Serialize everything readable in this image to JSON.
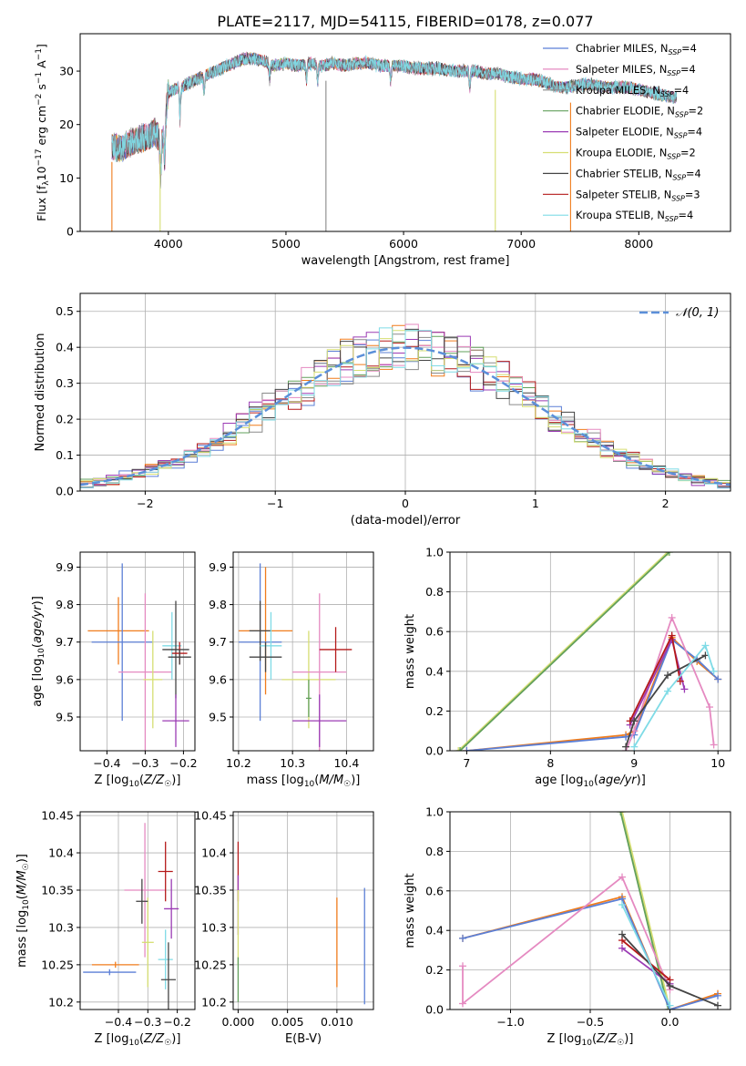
{
  "figure_title": "PLATE=2117, MJD=54115, FIBERID=0178, z=0.077",
  "colors": {
    "chabrier_miles": "#5b7fd6",
    "salpeter_miles": "#e58ac1",
    "kroupa_miles": "#8a8a8a",
    "chabrier_elodie": "#62a05b",
    "salpeter_elodie": "#9b3bb4",
    "kroupa_elodie": "#d6de72",
    "chabrier_stelib": "#444444",
    "salpeter_stelib": "#b51a1a",
    "kroupa_stelib": "#7fdbe6",
    "orange": "#f07c1c",
    "normal_curve": "#5b8fd9",
    "grid": "#b0b0b0"
  },
  "chart_data": [
    {
      "id": "spectrum",
      "type": "line",
      "xlabel": "wavelength [Angstrom, rest frame]",
      "ylabel": "Flux [f_λ10^-17 erg cm^-2 s^-1 A^-1]",
      "xlim": [
        3250,
        8780
      ],
      "ylim": [
        0,
        37
      ],
      "xticks": [
        4000,
        5000,
        6000,
        7000,
        8000
      ],
      "yticks": [
        0,
        10,
        20,
        30
      ],
      "grid": false,
      "legend_position": "top-right",
      "legend": [
        {
          "label": "Chabrier MILES, N",
          "sub": "SSP",
          "tail": "=4",
          "color_key": "chabrier_miles"
        },
        {
          "label": "Salpeter MILES, N",
          "sub": "SSP",
          "tail": "=4",
          "color_key": "salpeter_miles"
        },
        {
          "label": "Kroupa MILES, N",
          "sub": "SSP",
          "tail": "=4",
          "color_key": "kroupa_miles"
        },
        {
          "label": "Chabrier ELODIE, N",
          "sub": "SSP",
          "tail": "=2",
          "color_key": "chabrier_elodie"
        },
        {
          "label": "Salpeter ELODIE, N",
          "sub": "SSP",
          "tail": "=4",
          "color_key": "salpeter_elodie"
        },
        {
          "label": "Kroupa ELODIE, N",
          "sub": "SSP",
          "tail": "=2",
          "color_key": "kroupa_elodie"
        },
        {
          "label": "Chabrier STELIB, N",
          "sub": "SSP",
          "tail": "=4",
          "color_key": "chabrier_stelib"
        },
        {
          "label": "Salpeter STELIB, N",
          "sub": "SSP",
          "tail": "=3",
          "color_key": "salpeter_stelib"
        },
        {
          "label": "Kroupa STELIB, N",
          "sub": "SSP",
          "tail": "=4",
          "color_key": "kroupa_stelib"
        }
      ],
      "continuum_points": {
        "x": [
          3520,
          3600,
          3700,
          3800,
          3880,
          3950,
          4000,
          4100,
          4200,
          4300,
          4400,
          4500,
          4600,
          4700,
          4800,
          4900,
          5000,
          5100,
          5200,
          5300,
          5400,
          5500,
          5600,
          5700,
          5800,
          5900,
          6000,
          6100,
          6200,
          6300,
          6400,
          6500,
          6600,
          6700,
          6800,
          6900,
          7000,
          7100,
          7200,
          7300,
          7400,
          7500,
          7600,
          7700,
          7800,
          7900,
          8000,
          8100,
          8200,
          8320
        ],
        "y": [
          16,
          15.5,
          17,
          17.5,
          18.5,
          17,
          26,
          27,
          28,
          29,
          30,
          31,
          32,
          32.5,
          32,
          31,
          31.5,
          31,
          31.5,
          31,
          31.5,
          31,
          31.5,
          31.5,
          31,
          31,
          31,
          30.5,
          30.5,
          30.5,
          30,
          30,
          30,
          29.5,
          29.5,
          29,
          28.5,
          28.5,
          28,
          27,
          27,
          27.5,
          27.5,
          27,
          27,
          27,
          26.5,
          26,
          25.5,
          25
        ]
      },
      "spectrum_range": [
        3520,
        8320
      ],
      "absorption_lines": [
        3934,
        3969,
        4101,
        4304,
        4861,
        5175,
        5270,
        5890,
        6563
      ],
      "vertical_spikes": [
        {
          "x": 3930,
          "color_key": "kroupa_elodie"
        },
        {
          "x": 5340,
          "color_key": "kroupa_miles"
        },
        {
          "x": 6780,
          "color_key": "kroupa_elodie"
        },
        {
          "x": 7420,
          "color_key": "orange"
        },
        {
          "x": 3520,
          "color_key": "orange"
        }
      ]
    },
    {
      "id": "residual_hist",
      "type": "area",
      "xlabel": "(data-model)/error",
      "ylabel": "Normed distribution",
      "xlim": [
        -2.5,
        2.5
      ],
      "ylim": [
        0,
        0.55
      ],
      "xticks": [
        -2,
        -1,
        0,
        1,
        2
      ],
      "yticks": [
        0.0,
        0.1,
        0.2,
        0.3,
        0.4,
        0.5
      ],
      "grid": true,
      "legend_position": "top-right",
      "legend_label": "𝒩(0, 1)",
      "bin_width": 0.1,
      "bins_start": -2.5,
      "series_color_keys": [
        "chabrier_miles",
        "orange",
        "chabrier_elodie",
        "salpeter_stelib",
        "salpeter_elodie",
        "kroupa_miles",
        "salpeter_miles",
        "chabrier_stelib",
        "kroupa_elodie",
        "kroupa_stelib"
      ],
      "normal_mu": 0,
      "normal_sigma": 1
    },
    {
      "id": "age_vs_Z",
      "type": "scatter",
      "xlabel": "Z [log10(Z/Z☉)]",
      "ylabel": "age [log10(age/yr)]",
      "xlim": [
        -0.47,
        -0.17
      ],
      "ylim": [
        9.41,
        9.94
      ],
      "xticks": [
        -0.4,
        -0.3,
        -0.2
      ],
      "yticks": [
        9.5,
        9.6,
        9.7,
        9.8,
        9.9
      ],
      "grid": true,
      "points": [
        {
          "x": -0.37,
          "y": 9.73,
          "xerr": 0.08,
          "yerr": 0.09,
          "color_key": "orange"
        },
        {
          "x": -0.36,
          "y": 9.7,
          "xerr": 0.08,
          "yerr": 0.21,
          "color_key": "chabrier_miles"
        },
        {
          "x": -0.3,
          "y": 9.62,
          "xerr": 0.07,
          "yerr": 0.21,
          "color_key": "salpeter_miles"
        },
        {
          "x": -0.28,
          "y": 9.6,
          "xerr": 0.025,
          "yerr": 0.13,
          "color_key": "kroupa_elodie"
        },
        {
          "x": -0.23,
          "y": 9.69,
          "xerr": 0.025,
          "yerr": 0.09,
          "color_key": "kroupa_stelib"
        },
        {
          "x": -0.22,
          "y": 9.68,
          "xerr": 0.035,
          "yerr": 0.13,
          "color_key": "chabrier_stelib"
        },
        {
          "x": -0.21,
          "y": 9.67,
          "xerr": 0.02,
          "yerr": 0.03,
          "color_key": "salpeter_stelib"
        },
        {
          "x": -0.22,
          "y": 9.49,
          "xerr": 0.035,
          "yerr": 0.07,
          "color_key": "salpeter_elodie"
        },
        {
          "x": -0.21,
          "y": 9.66,
          "xerr": 0.03,
          "yerr": 0.02,
          "color_key": "chabrier_stelib"
        }
      ]
    },
    {
      "id": "age_vs_mass",
      "type": "scatter",
      "xlabel": "mass [log10(M/M☉)]",
      "ylabel": "",
      "xlim": [
        10.19,
        10.45
      ],
      "ylim": [
        9.41,
        9.94
      ],
      "xticks": [
        10.2,
        10.3,
        10.4
      ],
      "yticks": [
        9.5,
        9.6,
        9.7,
        9.8,
        9.9
      ],
      "grid": true,
      "points": [
        {
          "x": 10.25,
          "y": 9.73,
          "xerr": 0.05,
          "yerr": 0.17,
          "color_key": "orange"
        },
        {
          "x": 10.24,
          "y": 9.7,
          "xerr": 0.04,
          "yerr": 0.21,
          "color_key": "chabrier_miles"
        },
        {
          "x": 10.24,
          "y": 9.73,
          "xerr": 0.02,
          "yerr": 0.08,
          "color_key": "chabrier_stelib"
        },
        {
          "x": 10.26,
          "y": 9.69,
          "xerr": 0.02,
          "yerr": 0.09,
          "color_key": "kroupa_stelib"
        },
        {
          "x": 10.25,
          "y": 9.66,
          "xerr": 0.03,
          "yerr": 0.04,
          "color_key": "chabrier_stelib"
        },
        {
          "x": 10.33,
          "y": 9.6,
          "xerr": 0.05,
          "yerr": 0.13,
          "color_key": "kroupa_elodie"
        },
        {
          "x": 10.35,
          "y": 9.62,
          "xerr": 0.05,
          "yerr": 0.21,
          "color_key": "salpeter_miles"
        },
        {
          "x": 10.38,
          "y": 9.68,
          "xerr": 0.03,
          "yerr": 0.06,
          "color_key": "salpeter_stelib"
        },
        {
          "x": 10.35,
          "y": 9.49,
          "xerr": 0.05,
          "yerr": 0.07,
          "color_key": "salpeter_elodie"
        },
        {
          "x": 10.33,
          "y": 9.55,
          "xerr": 0.005,
          "yerr": 0.05,
          "color_key": "chabrier_elodie"
        }
      ]
    },
    {
      "id": "mass_weight_vs_age",
      "type": "line",
      "xlabel": "age [log10(age/yr)]",
      "ylabel": "mass weight",
      "xlim": [
        6.8,
        10.15
      ],
      "ylim": [
        0,
        1.0
      ],
      "xticks": [
        7,
        8,
        9,
        10
      ],
      "yticks": [
        0.0,
        0.2,
        0.4,
        0.6,
        0.8,
        1.0
      ],
      "grid": true,
      "series": [
        {
          "color_key": "kroupa_elodie",
          "x": [
            6.9,
            9.4
          ],
          "y": [
            0.0,
            1.0
          ]
        },
        {
          "color_key": "chabrier_elodie",
          "x": [
            6.92,
            9.42
          ],
          "y": [
            0.0,
            1.0
          ]
        },
        {
          "color_key": "orange",
          "x": [
            7.0,
            8.9,
            9.0,
            9.45,
            9.75,
            10.0
          ],
          "y": [
            0.0,
            0.08,
            0.1,
            0.57,
            0.45,
            0.36
          ]
        },
        {
          "color_key": "chabrier_miles",
          "x": [
            7.0,
            8.9,
            9.0,
            9.45,
            9.75,
            10.0
          ],
          "y": [
            0.0,
            0.07,
            0.08,
            0.56,
            0.46,
            0.36
          ]
        },
        {
          "color_key": "salpeter_miles",
          "x": [
            8.9,
            9.0,
            9.45,
            9.9,
            9.95
          ],
          "y": [
            0.0,
            0.1,
            0.67,
            0.22,
            0.03
          ]
        },
        {
          "color_key": "salpeter_elodie",
          "x": [
            8.95,
            9.45,
            9.6
          ],
          "y": [
            0.13,
            0.56,
            0.31
          ]
        },
        {
          "color_key": "salpeter_stelib",
          "x": [
            8.95,
            9.45,
            9.55
          ],
          "y": [
            0.15,
            0.58,
            0.35
          ]
        },
        {
          "color_key": "chabrier_stelib",
          "x": [
            8.9,
            9.0,
            9.4,
            9.85
          ],
          "y": [
            0.02,
            0.15,
            0.38,
            0.48
          ]
        },
        {
          "color_key": "kroupa_stelib",
          "x": [
            9.0,
            9.4,
            9.85,
            9.95
          ],
          "y": [
            0.02,
            0.3,
            0.53,
            0.4
          ]
        }
      ]
    },
    {
      "id": "mass_vs_Z",
      "type": "scatter",
      "xlabel": "Z [log10(Z/Z☉)]",
      "ylabel": "mass [log10(M/M☉)]",
      "xlim": [
        -0.53,
        -0.14
      ],
      "ylim": [
        10.19,
        10.455
      ],
      "xticks": [
        -0.4,
        -0.3,
        -0.2
      ],
      "yticks": [
        10.2,
        10.25,
        10.3,
        10.35,
        10.4,
        10.45
      ],
      "grid": true,
      "points": [
        {
          "x": -0.41,
          "y": 10.25,
          "xerr": 0.08,
          "yerr": 0.004,
          "color_key": "orange"
        },
        {
          "x": -0.43,
          "y": 10.24,
          "xerr": 0.09,
          "yerr": 0.004,
          "color_key": "chabrier_miles"
        },
        {
          "x": -0.31,
          "y": 10.35,
          "xerr": 0.07,
          "yerr": 0.09,
          "color_key": "salpeter_miles"
        },
        {
          "x": -0.3,
          "y": 10.28,
          "xerr": 0.02,
          "yerr": 0.06,
          "color_key": "kroupa_elodie"
        },
        {
          "x": -0.32,
          "y": 10.335,
          "xerr": 0.02,
          "yerr": 0.03,
          "color_key": "chabrier_stelib"
        },
        {
          "x": -0.24,
          "y": 10.375,
          "xerr": 0.025,
          "yerr": 0.04,
          "color_key": "salpeter_stelib"
        },
        {
          "x": -0.22,
          "y": 10.325,
          "xerr": 0.025,
          "yerr": 0.04,
          "color_key": "salpeter_elodie"
        },
        {
          "x": -0.24,
          "y": 10.257,
          "xerr": 0.025,
          "yerr": 0.04,
          "color_key": "kroupa_stelib"
        },
        {
          "x": -0.23,
          "y": 10.23,
          "xerr": 0.025,
          "yerr": 0.05,
          "color_key": "chabrier_stelib"
        }
      ]
    },
    {
      "id": "mass_vs_ebv",
      "type": "scatter",
      "xlabel": "E(B-V)",
      "ylabel": "",
      "xlim": [
        -0.0005,
        0.0137
      ],
      "ylim": [
        10.19,
        10.455
      ],
      "xticks": [
        0.0,
        0.005,
        0.01
      ],
      "xticklabels": [
        "0.000",
        "0.005",
        "0.010"
      ],
      "yticks": [
        10.2,
        10.25,
        10.3,
        10.35,
        10.4,
        10.45
      ],
      "grid": true,
      "points": [
        {
          "x": 0.0,
          "y": 10.375,
          "xerr": 0,
          "yerr": 0.04,
          "color_key": "salpeter_stelib"
        },
        {
          "x": 0.0,
          "y": 10.33,
          "xerr": 0,
          "yerr": 0.04,
          "color_key": "salpeter_elodie"
        },
        {
          "x": 0.0,
          "y": 10.3,
          "xerr": 0,
          "yerr": 0.05,
          "color_key": "kroupa_elodie"
        },
        {
          "x": 0.0,
          "y": 10.23,
          "xerr": 0,
          "yerr": 0.03,
          "color_key": "chabrier_elodie"
        },
        {
          "x": 0.01,
          "y": 10.28,
          "xerr": 0,
          "yerr": 0.06,
          "color_key": "orange"
        },
        {
          "x": 0.0128,
          "y": 10.275,
          "xerr": 0,
          "yerr": 0.078,
          "color_key": "chabrier_miles"
        }
      ]
    },
    {
      "id": "mass_weight_vs_Z",
      "type": "line",
      "xlabel": "Z [log10(Z/Z☉)]",
      "ylabel": "mass weight",
      "xlim": [
        -1.38,
        0.38
      ],
      "ylim": [
        0,
        1.0
      ],
      "xticks": [
        -1.0,
        -0.5,
        0.0
      ],
      "yticks": [
        0.0,
        0.2,
        0.4,
        0.6,
        0.8,
        1.0
      ],
      "grid": true,
      "series": [
        {
          "color_key": "kroupa_elodie",
          "x": [
            -0.3,
            0.0
          ],
          "y": [
            1.0,
            0.0
          ]
        },
        {
          "color_key": "chabrier_elodie",
          "x": [
            -0.31,
            -0.01
          ],
          "y": [
            1.0,
            0.0
          ]
        },
        {
          "color_key": "orange",
          "x": [
            -1.3,
            -0.3,
            0.0,
            0.3
          ],
          "y": [
            0.36,
            0.57,
            0.0,
            0.08
          ]
        },
        {
          "color_key": "chabrier_miles",
          "x": [
            -1.3,
            -0.3,
            0.0,
            0.3
          ],
          "y": [
            0.36,
            0.56,
            0.0,
            0.07
          ]
        },
        {
          "color_key": "salpeter_miles",
          "x": [
            -1.3,
            -1.3,
            -0.3,
            0.0
          ],
          "y": [
            0.22,
            0.03,
            0.67,
            0.1
          ]
        },
        {
          "color_key": "salpeter_elodie",
          "x": [
            -0.3,
            0.0
          ],
          "y": [
            0.31,
            0.13
          ]
        },
        {
          "color_key": "salpeter_stelib",
          "x": [
            -0.3,
            0.0
          ],
          "y": [
            0.35,
            0.15
          ]
        },
        {
          "color_key": "chabrier_stelib",
          "x": [
            -0.3,
            0.0,
            0.3
          ],
          "y": [
            0.38,
            0.12,
            0.02
          ]
        },
        {
          "color_key": "kroupa_stelib",
          "x": [
            -0.3,
            0.0
          ],
          "y": [
            0.53,
            0.02
          ]
        }
      ]
    }
  ]
}
